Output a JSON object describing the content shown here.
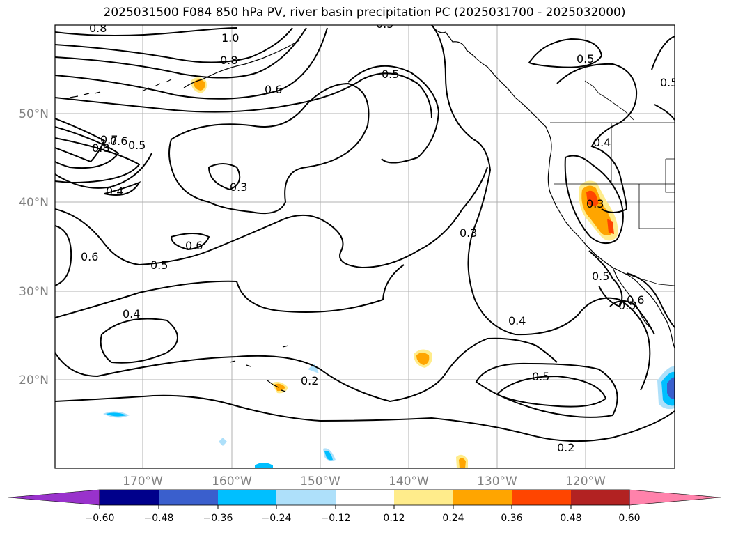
{
  "title": "2025031500 F084 850 hPa PV, river basin precipitation PC (2025031700 - 2025032000)",
  "map": {
    "lat_labels": [
      "50°N",
      "40°N",
      "30°N",
      "20°N"
    ],
    "lon_labels": [
      "170°W",
      "160°W",
      "150°W",
      "140°W",
      "130°W",
      "120°W"
    ],
    "grid_color": "#b0b0b0",
    "contour_labels": [
      "0.8",
      "1.0",
      "0.8",
      "0.6",
      "0.5",
      "0.5",
      "0.5",
      "0.8",
      "0.7",
      "0.6",
      "0.5",
      "0.4",
      "0.3",
      "0.4",
      "0.3",
      "0.6",
      "0.6",
      "0.5",
      "0.3",
      "0.4",
      "0.4",
      "0.5",
      "0.2",
      "0.2",
      "0.5",
      "0.6",
      "0.5",
      "0.5"
    ]
  },
  "colorbar": {
    "ticks": [
      "−0.60",
      "−0.48",
      "−0.36",
      "−0.24",
      "−0.12",
      "0.12",
      "0.24",
      "0.36",
      "0.48",
      "0.60"
    ],
    "colors": [
      "#9932cc",
      "#00008b",
      "#3a5fcd",
      "#00bfff",
      "#aee0fa",
      "#ffffff",
      "#ffec8b",
      "#ffa500",
      "#ff4500",
      "#b22222",
      "#ff82ab"
    ]
  }
}
